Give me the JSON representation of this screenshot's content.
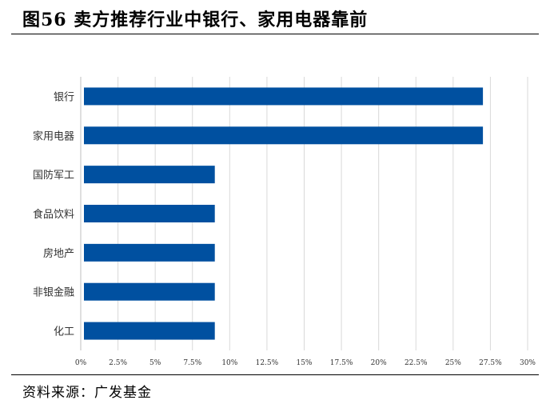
{
  "header": {
    "title": "图56  卖方推荐行业中银行、家用电器靠前"
  },
  "footer": {
    "source": "资料来源：广发基金"
  },
  "colors": {
    "bar": "#0050A0",
    "grid": "#D9D9D9",
    "axis": "#BFBFBF"
  },
  "chart_data": {
    "type": "bar",
    "orientation": "horizontal",
    "categories": [
      "银行",
      "家用电器",
      "国防军工",
      "食品饮料",
      "房地产",
      "非银金融",
      "化工"
    ],
    "values": [
      27,
      27,
      9,
      9,
      9,
      9,
      9
    ],
    "x_unit": "%",
    "xlim": [
      0,
      30
    ],
    "x_ticks": [
      0,
      2.5,
      5,
      7.5,
      10,
      12.5,
      15,
      17.5,
      20,
      22.5,
      25,
      27.5,
      30
    ],
    "x_tick_labels": [
      "0%",
      "2.5%",
      "5%",
      "7.5%",
      "10%",
      "12.5%",
      "15%",
      "17.5%",
      "20%",
      "22.5%",
      "25%",
      "27.5%",
      "30%"
    ],
    "grid": "vertical",
    "legend": "none"
  }
}
